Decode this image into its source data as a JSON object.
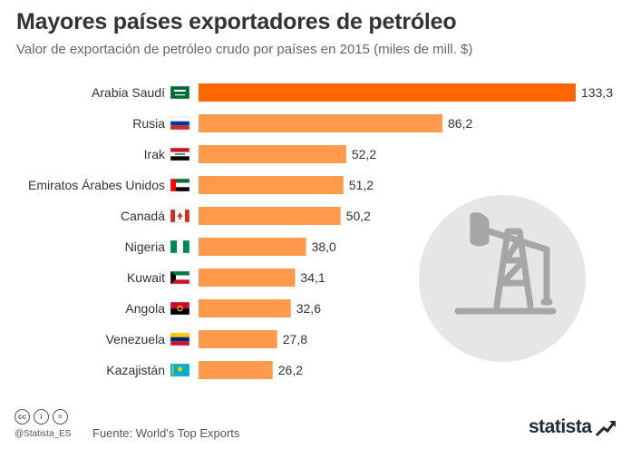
{
  "title": "Mayores países exportadores de petróleo",
  "subtitle": "Valor de exportación de petróleo crudo por países en 2015 (miles de mill. $)",
  "footer": {
    "source": "Fuente: World's Top Exports",
    "handle": "@Statista_ES",
    "brand": "statista",
    "license_icons": [
      "cc",
      "i",
      "="
    ]
  },
  "colors": {
    "highlight_bar": "#ff6600",
    "bar": "#ff9a4d",
    "icon_circle": "#e6e6e6",
    "icon_stroke": "#a6a6a6"
  },
  "decoration": {
    "icon": "oil-pumpjack-icon"
  },
  "chart_data": {
    "type": "bar",
    "orientation": "horizontal",
    "title": "Mayores países exportadores de petróleo",
    "subtitle": "Valor de exportación de petróleo crudo por países en 2015 (miles de mill. $)",
    "unit": "miles de mill. $",
    "categories": [
      "Arabia Saudí",
      "Rusia",
      "Irak",
      "Emiratos Árabes Unidos",
      "Canadá",
      "Nigeria",
      "Kuwait",
      "Angola",
      "Venezuela",
      "Kazajistán"
    ],
    "values": [
      133.3,
      86.2,
      52.2,
      51.2,
      50.2,
      38.0,
      34.1,
      32.6,
      27.8,
      26.2
    ],
    "labels": [
      "133,3",
      "86,2",
      "52,2",
      "51,2",
      "50,2",
      "38,0",
      "34,1",
      "32,6",
      "27,8",
      "26,2"
    ],
    "flags": [
      "saudi-arabia-flag-icon",
      "russia-flag-icon",
      "iraq-flag-icon",
      "uae-flag-icon",
      "canada-flag-icon",
      "nigeria-flag-icon",
      "kuwait-flag-icon",
      "angola-flag-icon",
      "venezuela-flag-icon",
      "kazakhstan-flag-icon"
    ],
    "xlim": [
      0,
      133.3
    ],
    "grid": false,
    "legend": "none"
  }
}
